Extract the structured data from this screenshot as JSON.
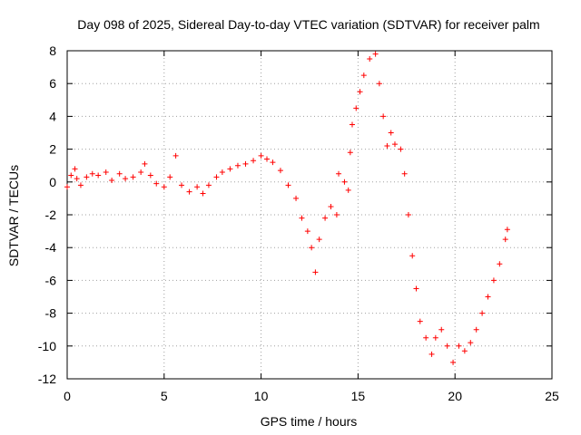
{
  "chart_data": {
    "type": "scatter",
    "title": "Day 098 of 2025, Sidereal Day-to-day VTEC variation (SDTVAR) for receiver palm",
    "xlabel": "GPS time / hours",
    "ylabel": "SDTVAR / TECUs",
    "xlim": [
      0,
      25
    ],
    "ylim": [
      -12,
      8
    ],
    "grid": true,
    "marker": "+",
    "color": "#ff0000",
    "xticks": [
      "0",
      "5",
      "10",
      "15",
      "20",
      "25"
    ],
    "yticks": [
      "-12",
      "-10",
      "-8",
      "-6",
      "-4",
      "-2",
      "0",
      "2",
      "4",
      "6",
      "8"
    ],
    "series": [
      {
        "name": "SDTVAR",
        "points": [
          [
            0.0,
            -0.3
          ],
          [
            0.2,
            0.4
          ],
          [
            0.4,
            0.8
          ],
          [
            0.5,
            0.2
          ],
          [
            0.7,
            -0.2
          ],
          [
            1.0,
            0.3
          ],
          [
            1.3,
            0.5
          ],
          [
            1.6,
            0.4
          ],
          [
            2.0,
            0.6
          ],
          [
            2.3,
            0.1
          ],
          [
            2.7,
            0.5
          ],
          [
            3.0,
            0.2
          ],
          [
            3.4,
            0.3
          ],
          [
            3.8,
            0.6
          ],
          [
            4.0,
            1.1
          ],
          [
            4.3,
            0.4
          ],
          [
            4.6,
            -0.1
          ],
          [
            5.0,
            -0.3
          ],
          [
            5.3,
            0.3
          ],
          [
            5.6,
            1.6
          ],
          [
            5.9,
            -0.2
          ],
          [
            6.3,
            -0.6
          ],
          [
            6.7,
            -0.3
          ],
          [
            7.0,
            -0.7
          ],
          [
            7.3,
            -0.2
          ],
          [
            7.7,
            0.3
          ],
          [
            8.0,
            0.6
          ],
          [
            8.4,
            0.8
          ],
          [
            8.8,
            1.0
          ],
          [
            9.2,
            1.1
          ],
          [
            9.6,
            1.3
          ],
          [
            10.0,
            1.6
          ],
          [
            10.3,
            1.4
          ],
          [
            10.6,
            1.2
          ],
          [
            11.0,
            0.7
          ],
          [
            11.4,
            -0.2
          ],
          [
            11.8,
            -1.0
          ],
          [
            12.1,
            -2.2
          ],
          [
            12.4,
            -3.0
          ],
          [
            12.6,
            -4.0
          ],
          [
            12.8,
            -5.5
          ],
          [
            13.0,
            -3.5
          ],
          [
            13.3,
            -2.2
          ],
          [
            13.6,
            -1.5
          ],
          [
            13.9,
            -2.0
          ],
          [
            14.0,
            0.5
          ],
          [
            14.3,
            0.0
          ],
          [
            14.5,
            -0.5
          ],
          [
            14.6,
            1.8
          ],
          [
            14.7,
            3.5
          ],
          [
            14.9,
            4.5
          ],
          [
            15.1,
            5.5
          ],
          [
            15.3,
            6.5
          ],
          [
            15.6,
            7.5
          ],
          [
            15.9,
            7.8
          ],
          [
            16.1,
            6.0
          ],
          [
            16.3,
            4.0
          ],
          [
            16.5,
            2.2
          ],
          [
            16.7,
            3.0
          ],
          [
            16.9,
            2.3
          ],
          [
            17.2,
            2.0
          ],
          [
            17.4,
            0.5
          ],
          [
            17.6,
            -2.0
          ],
          [
            17.8,
            -4.5
          ],
          [
            18.0,
            -6.5
          ],
          [
            18.2,
            -8.5
          ],
          [
            18.5,
            -9.5
          ],
          [
            18.8,
            -10.5
          ],
          [
            19.0,
            -9.5
          ],
          [
            19.3,
            -9.0
          ],
          [
            19.6,
            -10.0
          ],
          [
            19.9,
            -11.0
          ],
          [
            20.2,
            -10.0
          ],
          [
            20.5,
            -10.3
          ],
          [
            20.8,
            -9.8
          ],
          [
            21.1,
            -9.0
          ],
          [
            21.4,
            -8.0
          ],
          [
            21.7,
            -7.0
          ],
          [
            22.0,
            -6.0
          ],
          [
            22.3,
            -5.0
          ],
          [
            22.6,
            -3.5
          ],
          [
            22.7,
            -2.9
          ]
        ]
      }
    ]
  }
}
